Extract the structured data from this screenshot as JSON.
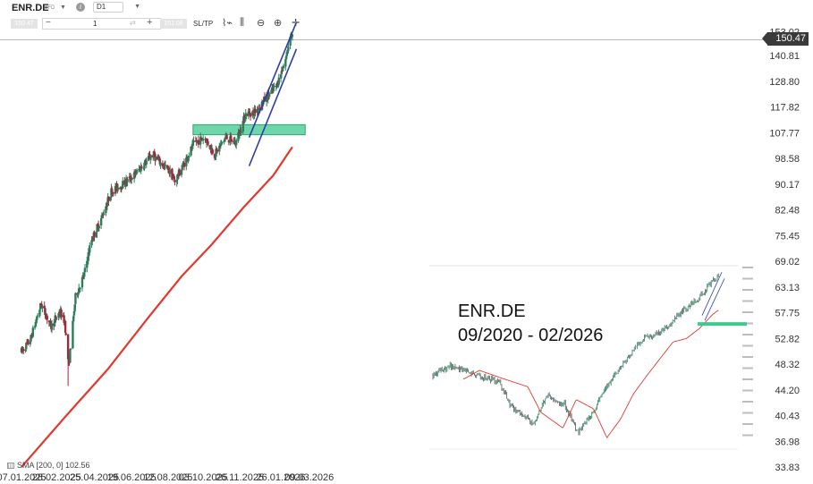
{
  "header": {
    "symbol": "ENR.DE",
    "instrument_type": "CFD",
    "timeframe": "D1",
    "info_icon": "info-icon"
  },
  "order_bar": {
    "sell_price": "150.47",
    "quantity": "1",
    "buy_price": "151.08",
    "sltp_label": "SL/TP"
  },
  "last_price": "150.47",
  "indicator": {
    "label": "SMA [200, 0] 102.56"
  },
  "inset": {
    "title_line1": "ENR.DE",
    "title_line2": "09/2020 - 02/2026"
  },
  "colors": {
    "bull_candle": "#2d7d5a",
    "bear_candle": "#a0283c",
    "sma_line": "#e03a2f",
    "channel": "#2b3ea8",
    "zone": "#3fc890"
  },
  "chart_data": {
    "type": "candlestick",
    "title": "",
    "y_scale": "log",
    "ylim": [
      33.83,
      156.5
    ],
    "y_ticks": [
      "153.02",
      "140.81",
      "128.80",
      "117.82",
      "107.77",
      "98.58",
      "90.17",
      "82.48",
      "75.45",
      "69.02",
      "63.13",
      "57.75",
      "52.82",
      "48.32",
      "44.20",
      "40.43",
      "36.98",
      "33.83"
    ],
    "x_ticks": [
      "07.01.2025",
      "28.02.2025",
      "25.04.2025",
      "19.06.2025",
      "12.08.2025",
      "03.10.2025",
      "26.11.2025",
      "26.01.2026",
      "09.03.2026"
    ],
    "price_path": [
      [
        "2025-01-07",
        50.5
      ],
      [
        "2025-01-20",
        52.5
      ],
      [
        "2025-02-05",
        59.5
      ],
      [
        "2025-02-20",
        55.0
      ],
      [
        "2025-03-05",
        58.0
      ],
      [
        "2025-03-12",
        56.0
      ],
      [
        "2025-03-18",
        48.0
      ],
      [
        "2025-03-28",
        61.0
      ],
      [
        "2025-04-10",
        66.0
      ],
      [
        "2025-04-20",
        74.0
      ],
      [
        "2025-05-05",
        80.0
      ],
      [
        "2025-05-20",
        88.0
      ],
      [
        "2025-06-05",
        90.0
      ],
      [
        "2025-06-20",
        92.5
      ],
      [
        "2025-07-05",
        96.0
      ],
      [
        "2025-07-20",
        100.0
      ],
      [
        "2025-08-01",
        97.0
      ],
      [
        "2025-08-15",
        94.0
      ],
      [
        "2025-08-22",
        91.0
      ],
      [
        "2025-09-05",
        97.0
      ],
      [
        "2025-09-20",
        104.0
      ],
      [
        "2025-10-05",
        106.0
      ],
      [
        "2025-10-20",
        100.0
      ],
      [
        "2025-11-05",
        106.0
      ],
      [
        "2025-11-20",
        104.0
      ],
      [
        "2025-12-05",
        115.0
      ],
      [
        "2025-12-20",
        116.0
      ],
      [
        "2026-01-05",
        122.0
      ],
      [
        "2026-01-20",
        127.0
      ],
      [
        "2026-02-03",
        140.0
      ],
      [
        "2026-02-09",
        152.0
      ],
      [
        "2026-02-12",
        150.47
      ]
    ],
    "sma_200": [
      [
        "2025-01-07",
        33.83
      ],
      [
        "2025-03-15",
        40.5
      ],
      [
        "2025-05-15",
        47.5
      ],
      [
        "2025-07-15",
        57.0
      ],
      [
        "2025-09-01",
        65.5
      ],
      [
        "2025-10-15",
        73.0
      ],
      [
        "2025-12-01",
        83.0
      ],
      [
        "2026-01-15",
        93.0
      ],
      [
        "2026-02-12",
        102.56
      ]
    ],
    "zone": {
      "from_date": "2025-09-18",
      "to_date": "2026-03-03",
      "low": 107.0,
      "high": 110.8
    },
    "channel_upper": [
      [
        "2025-12-10",
        106.0
      ],
      [
        "2026-02-18",
        158.0
      ]
    ],
    "channel_lower": [
      [
        "2025-12-10",
        96.0
      ],
      [
        "2026-02-18",
        144.0
      ]
    ],
    "inset_chart": {
      "title": "ENR.DE 09/2020 - 02/2026",
      "price_path": [
        [
          "2020-09",
          30
        ],
        [
          "2021-01",
          35
        ],
        [
          "2021-06",
          31
        ],
        [
          "2021-12",
          27
        ],
        [
          "2022-03",
          18
        ],
        [
          "2022-08",
          14
        ],
        [
          "2022-11",
          22
        ],
        [
          "2023-03",
          19
        ],
        [
          "2023-06",
          12
        ],
        [
          "2023-09",
          16
        ],
        [
          "2023-12",
          24
        ],
        [
          "2024-03",
          32
        ],
        [
          "2024-06",
          42
        ],
        [
          "2024-09",
          55
        ],
        [
          "2024-12",
          58
        ],
        [
          "2025-03",
          68
        ],
        [
          "2025-06",
          85
        ],
        [
          "2025-09",
          100
        ],
        [
          "2026-02",
          150
        ]
      ]
    }
  }
}
